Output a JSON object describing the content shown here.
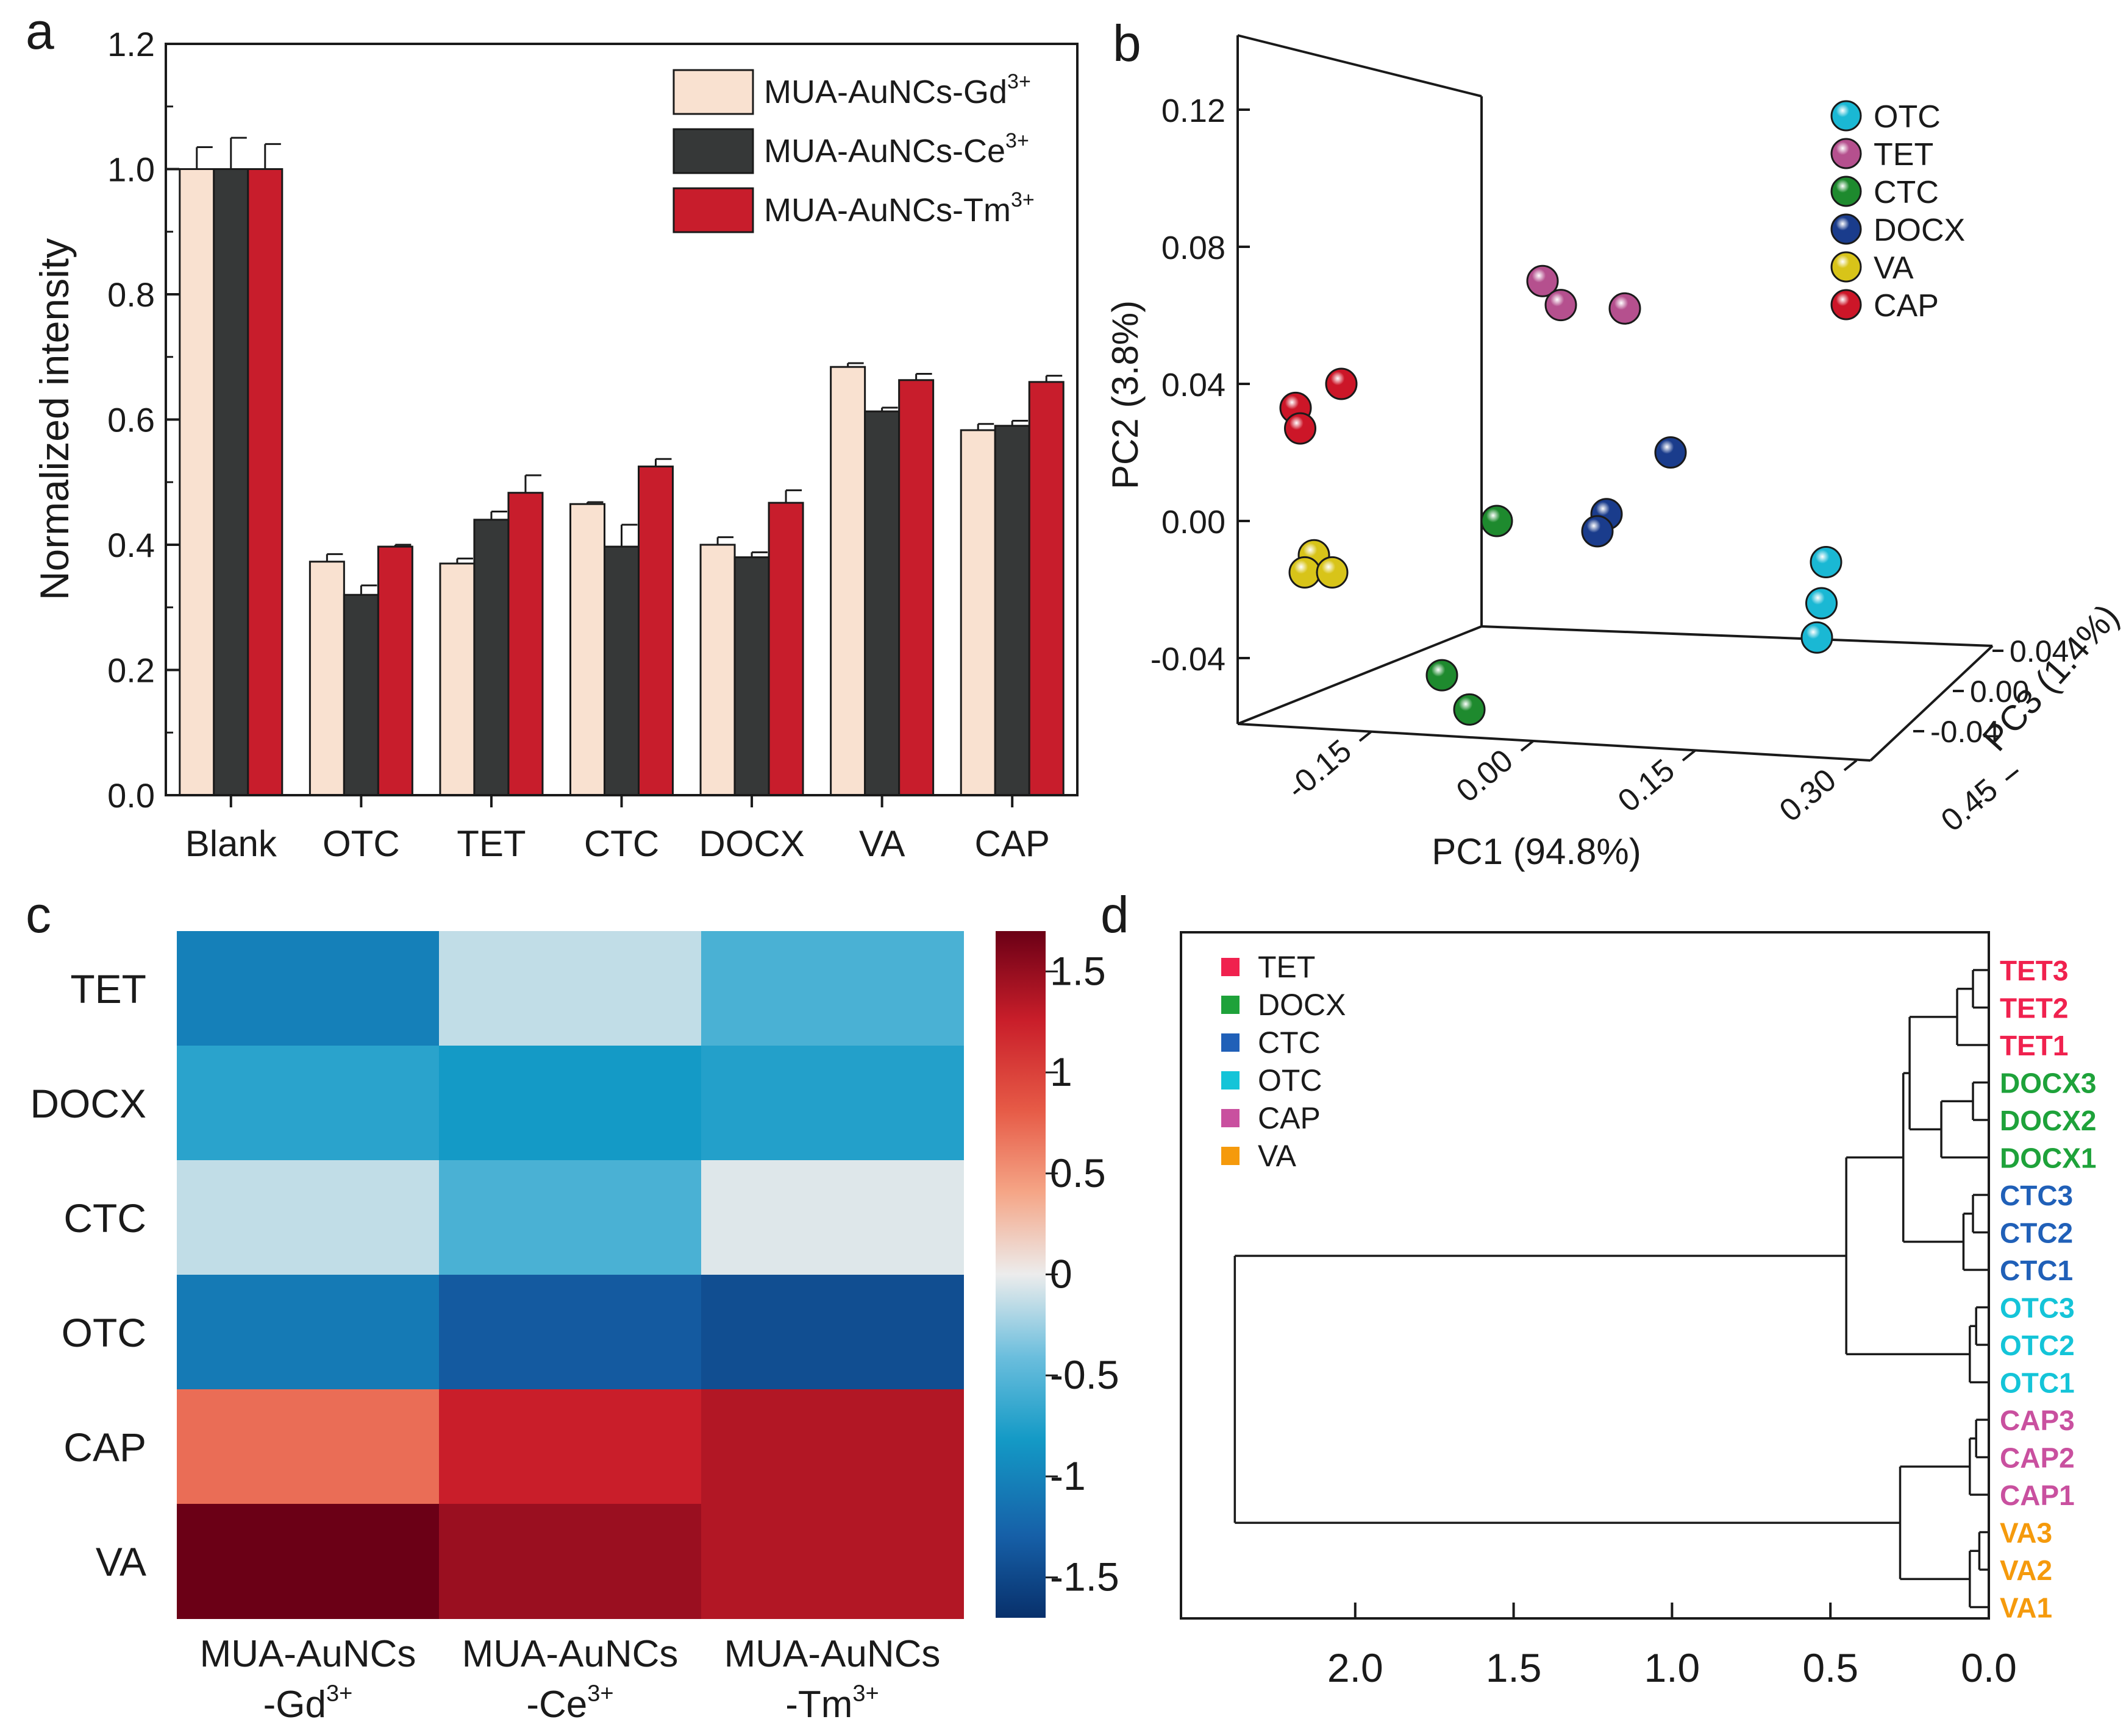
{
  "figure": {
    "panel_labels": [
      "a",
      "b",
      "c",
      "d"
    ]
  },
  "chart_data": [
    {
      "panel": "a",
      "type": "bar",
      "xlabel": "",
      "ylabel": "Normalized intensity",
      "ylim": [
        0,
        1.2
      ],
      "yticks": [
        "0.0",
        "0.2",
        "0.4",
        "0.6",
        "0.8",
        "1.0",
        "1.2"
      ],
      "categories": [
        "Blank",
        "OTC",
        "TET",
        "CTC",
        "DOCX",
        "VA",
        "CAP"
      ],
      "legend_position": "top-right",
      "series": [
        {
          "name": "MUA-AuNCs-Gd",
          "sup": "3+",
          "color": "#f9e1d0",
          "values": [
            1.0,
            0.373,
            0.37,
            0.465,
            0.4,
            0.684,
            0.583
          ],
          "errors": [
            0.035,
            0.012,
            0.008,
            0.003,
            0.012,
            0.006,
            0.01
          ]
        },
        {
          "name": "MUA-AuNCs-Ce",
          "sup": "3+",
          "color": "#363838",
          "values": [
            1.0,
            0.32,
            0.44,
            0.397,
            0.38,
            0.613,
            0.59
          ],
          "errors": [
            0.05,
            0.015,
            0.013,
            0.035,
            0.008,
            0.006,
            0.008
          ]
        },
        {
          "name": "MUA-AuNCs-Tm",
          "sup": "3+",
          "color": "#c81d2c",
          "values": [
            1.0,
            0.397,
            0.483,
            0.525,
            0.467,
            0.663,
            0.66
          ],
          "errors": [
            0.04,
            0.003,
            0.028,
            0.012,
            0.02,
            0.01,
            0.01
          ]
        }
      ]
    },
    {
      "panel": "b",
      "type": "scatter",
      "title": "",
      "xlabel": "PC1 (94.8%)",
      "ylabel": "PC2 (3.8%)",
      "zlabel": "PC3 (1.4%)",
      "xticks": [
        "-0.15",
        "0.00",
        "0.15",
        "0.30",
        "0.45"
      ],
      "yticks": [
        "0.12",
        "0.08",
        "0.04",
        "0.00",
        "-0.04"
      ],
      "zticks": [
        "0.04",
        "0.00",
        "-0.04"
      ],
      "legend_position": "top-right",
      "series": [
        {
          "name": "OTC",
          "color": "#1ab8d4",
          "points": [
            [
              0.4,
              -0.012
            ],
            [
              0.395,
              -0.024
            ],
            [
              0.39,
              -0.034
            ]
          ]
        },
        {
          "name": "TET",
          "color": "#b5508e",
          "points": [
            [
              0.09,
              0.07
            ],
            [
              0.11,
              0.063
            ],
            [
              0.18,
              0.062
            ]
          ]
        },
        {
          "name": "CTC",
          "color": "#1e8a2e",
          "points": [
            [
              0.04,
              0.0
            ],
            [
              -0.02,
              -0.045
            ],
            [
              0.01,
              -0.055
            ]
          ]
        },
        {
          "name": "DOCX",
          "color": "#1a3c8c",
          "points": [
            [
              0.23,
              0.02
            ],
            [
              0.16,
              0.002
            ],
            [
              0.15,
              -0.003
            ]
          ]
        },
        {
          "name": "VA",
          "color": "#d8c419",
          "points": [
            [
              -0.16,
              -0.01
            ],
            [
              -0.17,
              -0.015
            ],
            [
              -0.14,
              -0.015
            ]
          ]
        },
        {
          "name": "CAP",
          "color": "#cc1628",
          "points": [
            [
              -0.18,
              0.033
            ],
            [
              -0.175,
              0.027
            ],
            [
              -0.13,
              0.04
            ]
          ]
        }
      ]
    },
    {
      "panel": "c",
      "type": "heatmap",
      "rows": [
        "TET",
        "DOCX",
        "CTC",
        "OTC",
        "CAP",
        "VA"
      ],
      "columns": [
        {
          "top": "MUA-AuNCs",
          "bottom": "-Gd",
          "sup": "3+"
        },
        {
          "top": "MUA-AuNCs",
          "bottom": "-Ce",
          "sup": "3+"
        },
        {
          "top": "MUA-AuNCs",
          "bottom": "-Tm",
          "sup": "3+"
        }
      ],
      "values": [
        [
          -1.05,
          -0.15,
          -0.6
        ],
        [
          -0.75,
          -0.85,
          -0.78
        ],
        [
          -0.15,
          -0.6,
          -0.05
        ],
        [
          -1.1,
          -1.35,
          -1.45
        ],
        [
          0.75,
          1.3,
          1.4
        ],
        [
          1.75,
          1.5,
          1.4
        ]
      ],
      "colorbar": {
        "range": [
          -1.7,
          1.7
        ],
        "ticks": [
          "1.5",
          "1",
          "0.5",
          "0",
          "-0.5",
          "-1",
          "-1.5"
        ],
        "tick_values": [
          1.5,
          1,
          0.5,
          0,
          -0.5,
          -1,
          -1.5
        ]
      }
    },
    {
      "panel": "d",
      "type": "dendrogram",
      "xlim": [
        2.55,
        0
      ],
      "xticks": [
        "2.0",
        "1.5",
        "1.0",
        "0.5",
        "0.0"
      ],
      "xtick_values": [
        2.0,
        1.5,
        1.0,
        0.5,
        0.0
      ],
      "legend_position": "top-left",
      "legend": [
        {
          "name": "TET",
          "color": "#f0214e"
        },
        {
          "name": "DOCX",
          "color": "#1ea23a"
        },
        {
          "name": "CTC",
          "color": "#2060b8"
        },
        {
          "name": "OTC",
          "color": "#14c4d8"
        },
        {
          "name": "CAP",
          "color": "#c9509f"
        },
        {
          "name": "VA",
          "color": "#f59a0c"
        }
      ],
      "leaves": [
        {
          "label": "TET3",
          "color": "#f0214e"
        },
        {
          "label": "TET2",
          "color": "#f0214e"
        },
        {
          "label": "TET1",
          "color": "#f0214e"
        },
        {
          "label": "DOCX3",
          "color": "#1ea23a"
        },
        {
          "label": "DOCX2",
          "color": "#1ea23a"
        },
        {
          "label": "DOCX1",
          "color": "#1ea23a"
        },
        {
          "label": "CTC3",
          "color": "#2060b8"
        },
        {
          "label": "CTC2",
          "color": "#2060b8"
        },
        {
          "label": "CTC1",
          "color": "#2060b8"
        },
        {
          "label": "OTC3",
          "color": "#14c4d8"
        },
        {
          "label": "OTC2",
          "color": "#14c4d8"
        },
        {
          "label": "OTC1",
          "color": "#14c4d8"
        },
        {
          "label": "CAP3",
          "color": "#c9509f"
        },
        {
          "label": "CAP2",
          "color": "#c9509f"
        },
        {
          "label": "CAP1",
          "color": "#c9509f"
        },
        {
          "label": "VA3",
          "color": "#f59a0c"
        },
        {
          "label": "VA2",
          "color": "#f59a0c"
        },
        {
          "label": "VA1",
          "color": "#f59a0c"
        }
      ],
      "merges": [
        {
          "a": [
            0,
            1
          ],
          "h": 0.05
        },
        {
          "a": [
            2,
            18
          ],
          "h": 0.1
        },
        {
          "a": [
            3,
            4
          ],
          "h": 0.05
        },
        {
          "a": [
            5,
            20
          ],
          "h": 0.15
        },
        {
          "a": [
            19,
            21
          ],
          "h": 0.25
        },
        {
          "a": [
            6,
            7
          ],
          "h": 0.05
        },
        {
          "a": [
            8,
            23
          ],
          "h": 0.08
        },
        {
          "a": [
            22,
            24
          ],
          "h": 0.27
        },
        {
          "a": [
            9,
            10
          ],
          "h": 0.04
        },
        {
          "a": [
            11,
            26
          ],
          "h": 0.06
        },
        {
          "a": [
            25,
            27
          ],
          "h": 0.45
        },
        {
          "a": [
            12,
            13
          ],
          "h": 0.04
        },
        {
          "a": [
            14,
            29
          ],
          "h": 0.06
        },
        {
          "a": [
            15,
            16
          ],
          "h": 0.03
        },
        {
          "a": [
            17,
            31
          ],
          "h": 0.06
        },
        {
          "a": [
            30,
            32
          ],
          "h": 0.28
        },
        {
          "a": [
            28,
            33
          ],
          "h": 2.38
        }
      ]
    }
  ]
}
